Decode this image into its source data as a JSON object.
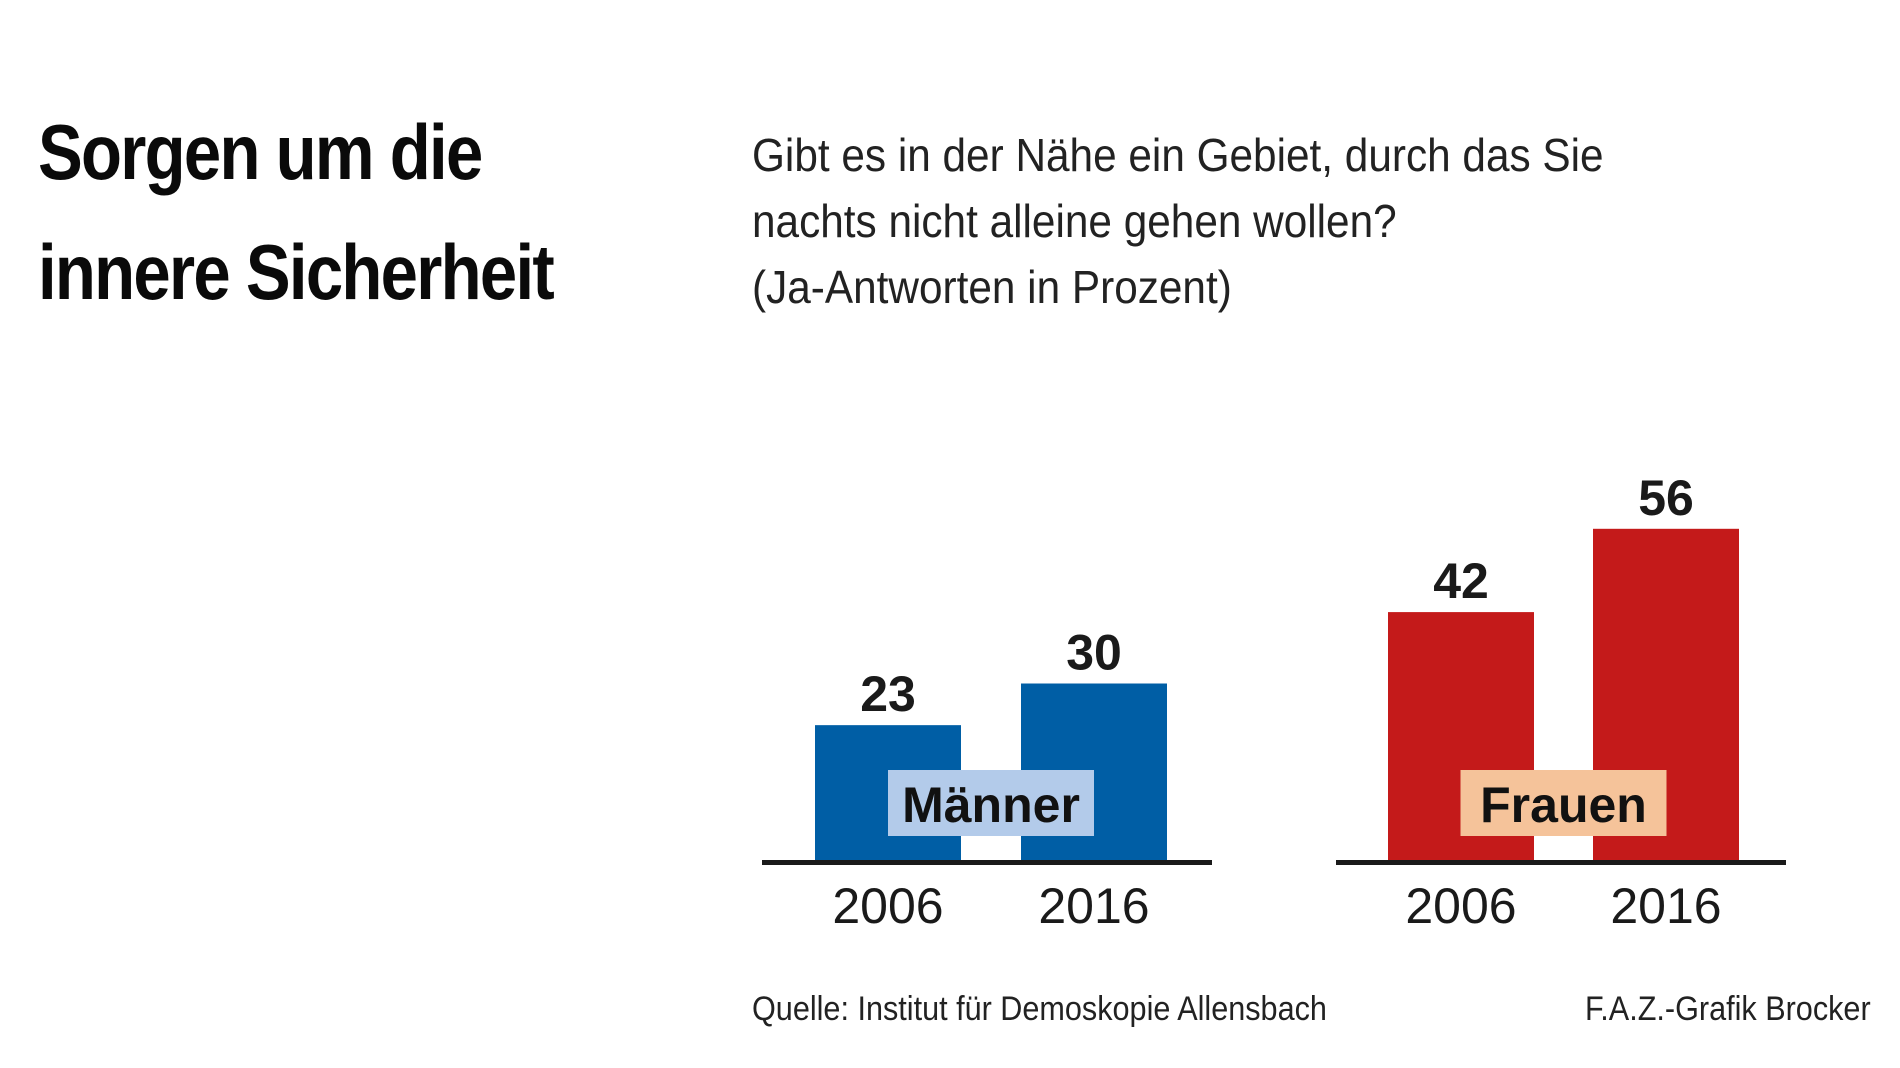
{
  "header": {
    "title_lines": [
      "Sorgen um die",
      "innere Sicherheit"
    ],
    "subtitle_lines": [
      "Gibt es in der Nähe ein Gebiet, durch das Sie",
      "nachts nicht alleine gehen wollen?",
      "(Ja-Antworten in Prozent)"
    ]
  },
  "chart_data": {
    "type": "bar",
    "title": "Sorgen um die innere Sicherheit",
    "subtitle": "Gibt es in der Nähe ein Gebiet, durch das Sie nachts nicht alleine gehen wollen? (Ja-Antworten in Prozent)",
    "ylim": [
      0,
      60
    ],
    "grid": false,
    "groups": [
      {
        "name": "Männer",
        "color": "#005ea5",
        "label_bg": "#b3cbea",
        "categories": [
          "2006",
          "2016"
        ],
        "values": [
          23,
          30
        ]
      },
      {
        "name": "Frauen",
        "color": "#c41a1a",
        "label_bg": "#f5c39a",
        "categories": [
          "2006",
          "2016"
        ],
        "values": [
          42,
          56
        ]
      }
    ]
  },
  "footer": {
    "source": "Quelle: Institut für Demoskopie Allensbach",
    "credit": "F.A.Z.-Grafik Brocker"
  }
}
